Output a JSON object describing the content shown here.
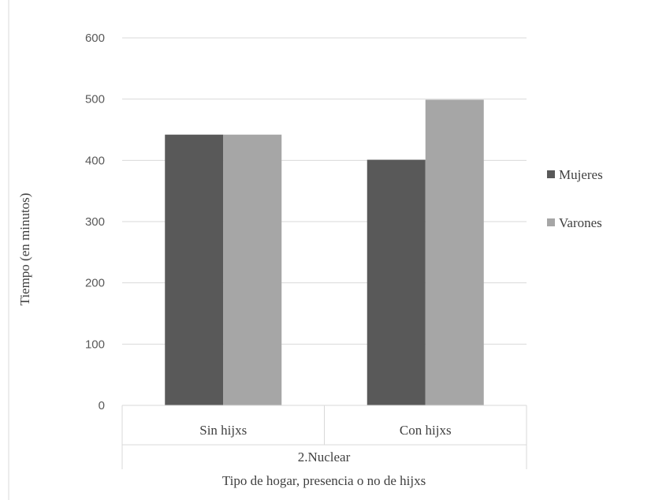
{
  "chart_data": {
    "type": "bar",
    "ylabel": "Tiempo (en minutos)",
    "xlabel": "Tipo de hogar, presencia o no de hijxs",
    "group_label": "2.Nuclear",
    "categories": [
      "Sin hijxs",
      "Con hijxs"
    ],
    "series": [
      {
        "name": "Mujeres",
        "values": [
          442,
          401
        ],
        "color": "#595959"
      },
      {
        "name": "Varones",
        "values": [
          442,
          499
        ],
        "color": "#a6a6a6"
      }
    ],
    "ylim": [
      0,
      600
    ],
    "yticks": [
      0,
      100,
      200,
      300,
      400,
      500,
      600
    ],
    "grid": true,
    "legend": "right"
  }
}
